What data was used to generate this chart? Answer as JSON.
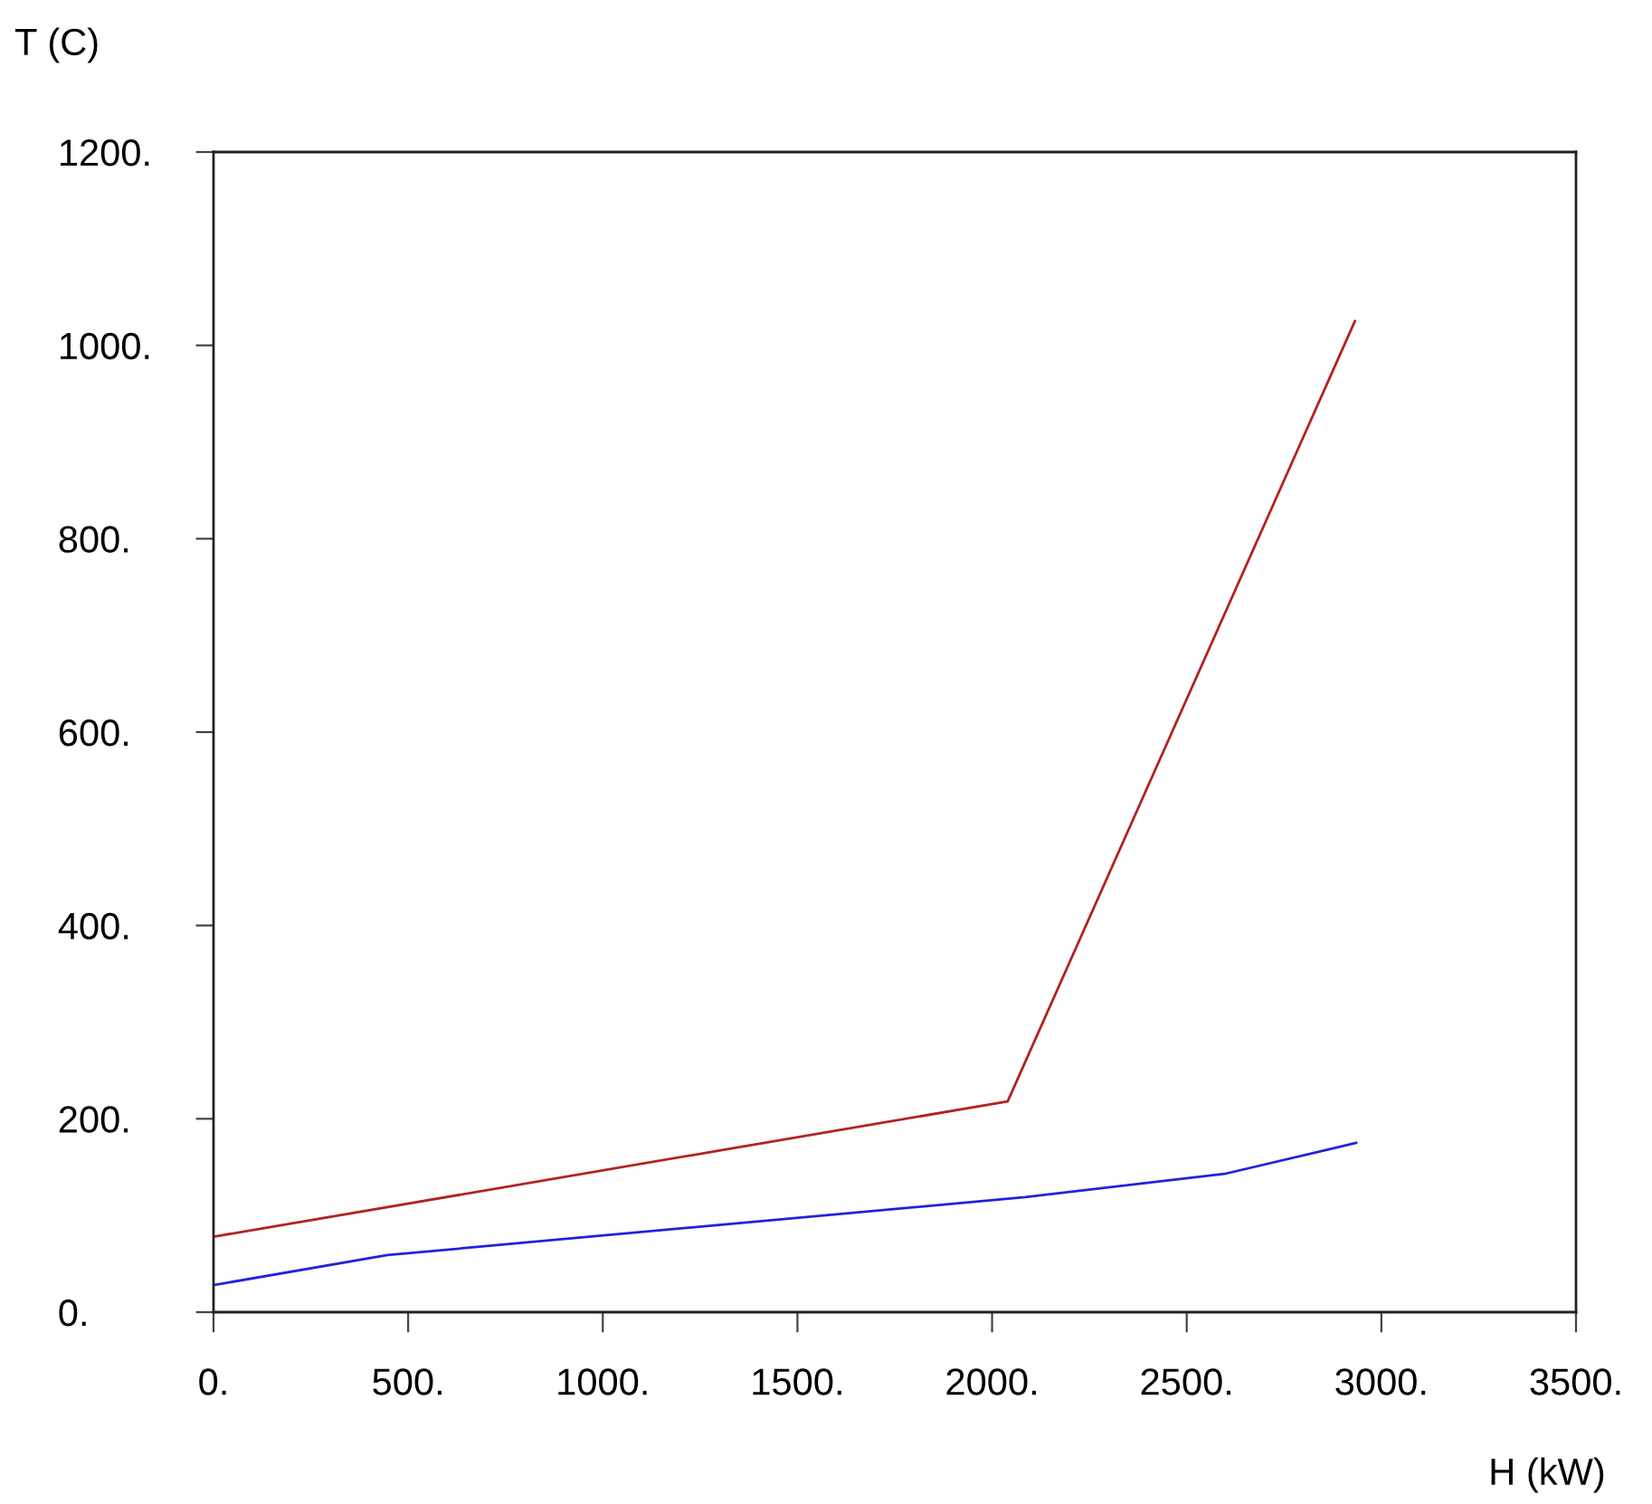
{
  "chart_data": {
    "type": "line",
    "xlabel": "H (kW)",
    "ylabel": "T (C)",
    "series": [
      {
        "color": "#b22222",
        "x": [
          0,
          2040,
          2932
        ],
        "values": [
          78,
          218,
          1025
        ]
      },
      {
        "color": "#2222dd",
        "x": [
          0,
          447,
          2085,
          2597,
          2935
        ],
        "values": [
          28,
          59,
          119,
          143,
          175
        ]
      }
    ],
    "xlim": [
      0,
      3500
    ],
    "ylim": [
      0,
      1200
    ],
    "xticks": [
      {
        "value": 0,
        "label": "0."
      },
      {
        "value": 500,
        "label": "500."
      },
      {
        "value": 1000,
        "label": "1000."
      },
      {
        "value": 1500,
        "label": "1500."
      },
      {
        "value": 2000,
        "label": "2000."
      },
      {
        "value": 2500,
        "label": "2500."
      },
      {
        "value": 3000,
        "label": "3000."
      },
      {
        "value": 3500,
        "label": "3500."
      }
    ],
    "yticks": [
      {
        "value": 0,
        "label": "0."
      },
      {
        "value": 200,
        "label": "200."
      },
      {
        "value": 400,
        "label": "400."
      },
      {
        "value": 600,
        "label": "600."
      },
      {
        "value": 800,
        "label": "800."
      },
      {
        "value": 1000,
        "label": "1000."
      },
      {
        "value": 1200,
        "label": "1200."
      }
    ],
    "grid": false,
    "legend": false,
    "marker": "none",
    "line_style": "solid"
  }
}
